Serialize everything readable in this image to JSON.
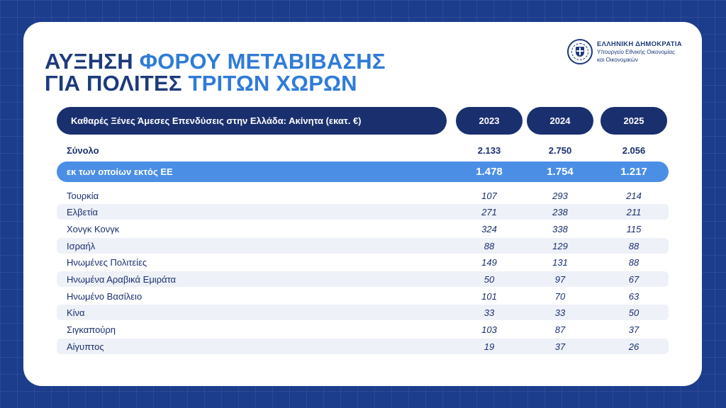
{
  "title": {
    "line1_dark": "ΑΥΞΗΣΗ ",
    "line1_accent": "ΦΟΡΟΥ ΜΕΤΑΒΙΒΑΣΗΣ",
    "line2_dark": "ΓΙΑ ΠΟΛΙΤΕΣ ",
    "line2_accent": "ΤΡΙΤΩΝ ΧΩΡΩΝ"
  },
  "logo": {
    "icon": "greek-seal-icon",
    "line1": "ΕΛΛΗΝΙΚΗ ΔΗΜΟΚΡΑΤΙΑ",
    "line2": "Υπουργείο Εθνικής Οικονομίας",
    "line3": "και Οικονομικών"
  },
  "table": {
    "header": "Καθαρές Ξένες Άμεσες Επενδύσεις στην Ελλάδα: Ακίνητα (εκατ. €)",
    "years": [
      "2023",
      "2024",
      "2025"
    ],
    "total": {
      "label": "Σύνολο",
      "values": [
        "2.133",
        "2.750",
        "2.056"
      ]
    },
    "non_eu": {
      "label": "εκ των οποίων εκτός ΕΕ",
      "values": [
        "1.478",
        "1.754",
        "1.217"
      ]
    },
    "rows": [
      {
        "label": "Τουρκία",
        "values": [
          "107",
          "293",
          "214"
        ]
      },
      {
        "label": "Ελβετία",
        "values": [
          "271",
          "238",
          "211"
        ]
      },
      {
        "label": "Χονγκ Κονγκ",
        "values": [
          "324",
          "338",
          "115"
        ]
      },
      {
        "label": "Ισραήλ",
        "values": [
          "88",
          "129",
          "88"
        ]
      },
      {
        "label": "Ηνωμένες Πολιτείες",
        "values": [
          "149",
          "131",
          "88"
        ]
      },
      {
        "label": "Ηνωμένα Αραβικά Εμιράτα",
        "values": [
          "50",
          "97",
          "67"
        ]
      },
      {
        "label": "Ηνωμένο Βασίλειο",
        "values": [
          "101",
          "70",
          "63"
        ]
      },
      {
        "label": "Κίνα",
        "values": [
          "33",
          "33",
          "50"
        ]
      },
      {
        "label": "Σιγκαπούρη",
        "values": [
          "103",
          "87",
          "37"
        ]
      },
      {
        "label": "Αίγυπτος",
        "values": [
          "19",
          "37",
          "26"
        ]
      }
    ]
  },
  "colors": {
    "background": "#1c3c8c",
    "dark_navy": "#1a2f6e",
    "accent_blue": "#2f7bd8",
    "highlight_blue": "#4a8fe5",
    "stripe": "#eef1f8"
  }
}
